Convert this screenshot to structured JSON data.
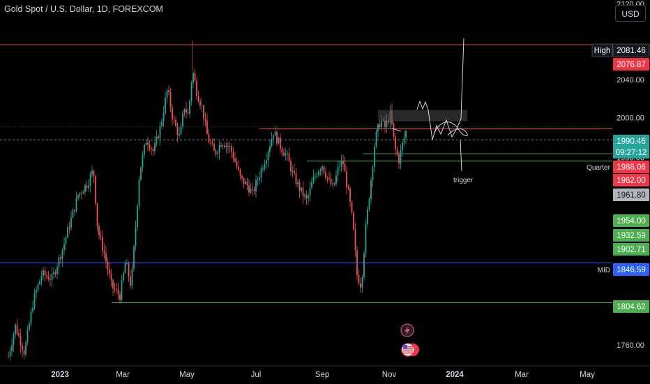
{
  "header": {
    "symbol_title": "Gold Spot / U.S. Dollar, 1D, FOREXCOM",
    "currency_button": "USD"
  },
  "colors": {
    "background": "#000000",
    "up_candle": "#26a69a",
    "down_candle": "#ef5350",
    "resistance_line": "#f23645",
    "support_line": "#4caf50",
    "mid_line": "#2962ff",
    "axis_text": "#d1d4dc"
  },
  "chart_data": {
    "type": "candlestick",
    "instrument": "Gold Spot / U.S. Dollar",
    "interval": "1D",
    "y_axis": {
      "range": [
        1738,
        2124
      ],
      "ticks": [
        1760.0,
        1804.62,
        1846.59,
        1902.71,
        1932.59,
        1954.0,
        1958.0,
        1961.8,
        1962.0,
        1988.06,
        1990.46,
        2000.0,
        2040.0,
        2076.87,
        2081.46,
        2120.0
      ],
      "tick_labels": [
        "1760.00",
        "2000.00",
        "2040.00",
        "2120.00",
        "1958.00"
      ]
    },
    "x_axis": {
      "labels": [
        "2023",
        "Mar",
        "May",
        "Jul",
        "Sep",
        "Nov",
        "2024",
        "Mar",
        "May"
      ]
    },
    "price_markers": [
      {
        "name": "high",
        "label": "High",
        "value": "2081.46",
        "color": "#131722"
      },
      {
        "name": "resistance",
        "value": "2076.87",
        "color": "#f23645"
      },
      {
        "name": "last-price",
        "value": "1990.46",
        "color": "#26a69a"
      },
      {
        "name": "countdown",
        "value": "09:27:12",
        "color": "#26a69a"
      },
      {
        "name": "quarter",
        "label": "Quarter",
        "value": "1988.06",
        "color": "#f23645"
      },
      {
        "name": "level-1962",
        "value": "1962.00",
        "color": "#f23645"
      },
      {
        "name": "level-1961",
        "value": "1961.80",
        "color": "#b2b5be"
      },
      {
        "name": "level-1954",
        "value": "1954.00",
        "color": "#4caf50"
      },
      {
        "name": "level-1932",
        "value": "1932.59",
        "color": "#4caf50"
      },
      {
        "name": "level-1902",
        "value": "1902.71",
        "color": "#4caf50"
      },
      {
        "name": "mid",
        "label": "MID",
        "value": "1846.59",
        "color": "#2962ff"
      },
      {
        "name": "support",
        "value": "1804.62",
        "color": "#4caf50"
      }
    ],
    "annotations": [
      {
        "name": "trigger-note",
        "text": "trigger"
      }
    ],
    "grid": false,
    "legend": "none"
  }
}
